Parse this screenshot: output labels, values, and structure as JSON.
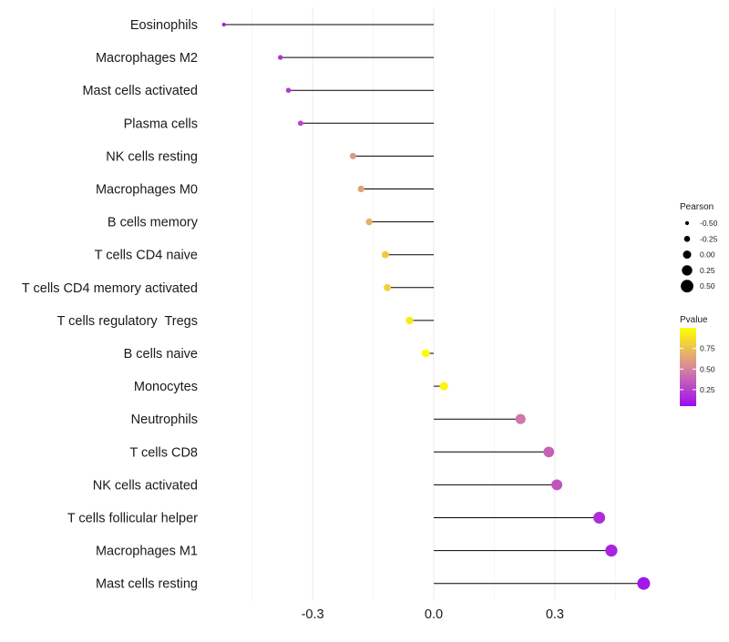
{
  "chart_data": {
    "type": "lollipop",
    "title": "",
    "xlabel": "",
    "ylabel": "",
    "xlim": [
      -0.5,
      0.5
    ],
    "xticks": [
      -0.3,
      0.0,
      0.3
    ],
    "xtick_labels": [
      "-0.3",
      "0.0",
      "0.3"
    ],
    "grid": true,
    "categories": [
      "Eosinophils",
      "Macrophages M2",
      "Mast cells activated",
      "Plasma cells",
      "NK cells resting",
      "Macrophages M0",
      "B cells memory",
      "T cells CD4 naive",
      "T cells CD4 memory activated",
      "T cells regulatory  Tregs",
      "B cells naive",
      "Monocytes",
      "Neutrophils",
      "T cells CD8",
      "NK cells activated",
      "T cells follicular helper",
      "Macrophages M1",
      "Mast cells resting"
    ],
    "pearson": [
      -0.52,
      -0.38,
      -0.36,
      -0.33,
      -0.2,
      -0.18,
      -0.16,
      -0.12,
      -0.115,
      -0.06,
      -0.02,
      0.025,
      0.215,
      0.285,
      0.305,
      0.41,
      0.44,
      0.52
    ],
    "pvalue": [
      0.09,
      0.2,
      0.22,
      0.27,
      0.58,
      0.63,
      0.68,
      0.79,
      0.81,
      0.92,
      0.98,
      0.96,
      0.45,
      0.37,
      0.32,
      0.18,
      0.14,
      0.09
    ],
    "size_legend": {
      "title": "Pearson",
      "values": [
        -0.5,
        -0.25,
        0.0,
        0.25,
        0.5
      ],
      "labels": [
        "-0.50",
        "-0.25",
        "0.00",
        "0.25",
        "0.50"
      ]
    },
    "color_legend": {
      "title": "Pvalue",
      "ticks": [
        0.75,
        0.5,
        0.25
      ],
      "labels": [
        "0.75",
        "0.50",
        "0.25"
      ],
      "range": [
        0.05,
        1.0
      ],
      "low_color": "#9D0CF0",
      "mid_color": "#D98A9A",
      "high_color": "#FFFF00"
    }
  }
}
